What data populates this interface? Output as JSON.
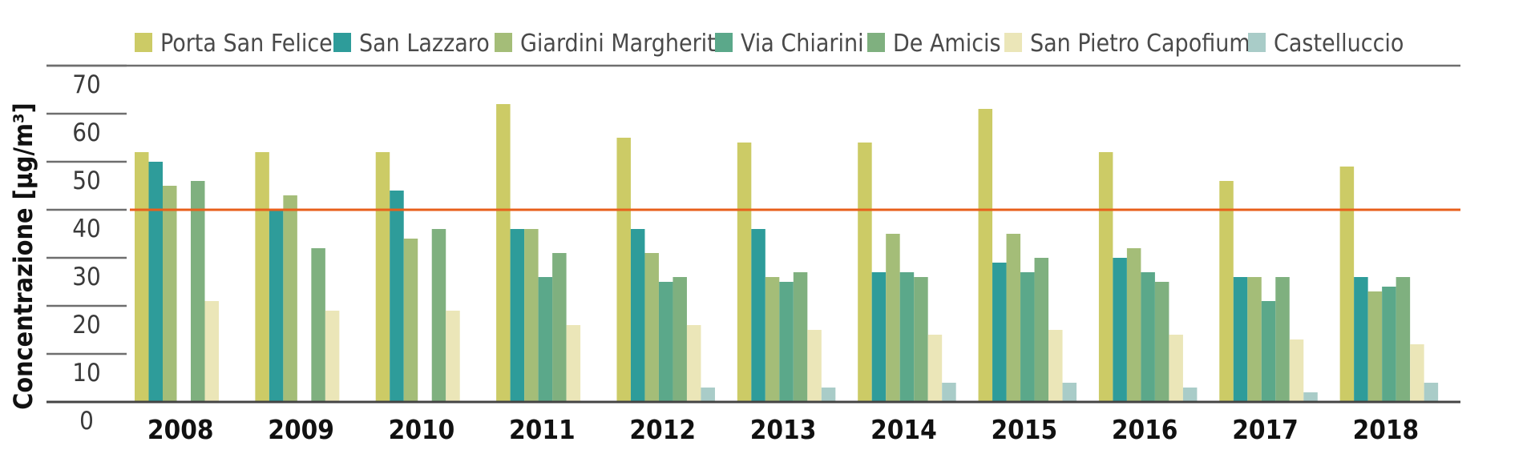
{
  "chart_data": {
    "type": "bar",
    "title": "",
    "xlabel": "",
    "ylabel": "Concentrazione [µg/m³]",
    "ylim": [
      0,
      70
    ],
    "yticks": [
      0,
      10,
      20,
      30,
      40,
      50,
      60,
      70
    ],
    "grid": false,
    "legend_position": "top",
    "reference_line": {
      "value": 40,
      "color": "#e8601c"
    },
    "categories": [
      "2008",
      "2009",
      "2010",
      "2011",
      "2012",
      "2013",
      "2014",
      "2015",
      "2016",
      "2017",
      "2018"
    ],
    "series": [
      {
        "name": "Porta San Felice",
        "color": "#cccb66",
        "values": [
          52,
          52,
          52,
          62,
          55,
          54,
          54,
          61,
          52,
          46,
          49
        ]
      },
      {
        "name": "San Lazzaro",
        "color": "#2e9c9a",
        "values": [
          50,
          40,
          44,
          36,
          36,
          36,
          27,
          29,
          30,
          26,
          26
        ]
      },
      {
        "name": "Giardini Margherita",
        "color": "#a4bd78",
        "values": [
          45,
          43,
          34,
          36,
          31,
          26,
          35,
          35,
          32,
          26,
          23
        ]
      },
      {
        "name": "Via Chiarini",
        "color": "#5ba88a",
        "values": [
          null,
          null,
          null,
          26,
          25,
          25,
          27,
          27,
          27,
          21,
          24
        ]
      },
      {
        "name": "De Amicis",
        "color": "#7fb07f",
        "values": [
          46,
          32,
          36,
          31,
          26,
          27,
          26,
          30,
          25,
          26,
          26
        ]
      },
      {
        "name": "San Pietro Capofiume",
        "color": "#ebe6b8",
        "values": [
          21,
          19,
          19,
          16,
          16,
          15,
          14,
          15,
          14,
          13,
          12
        ]
      },
      {
        "name": "Castelluccio",
        "color": "#a9ccc8",
        "values": [
          null,
          null,
          null,
          null,
          3,
          3,
          4,
          4,
          3,
          2,
          4
        ]
      }
    ]
  }
}
